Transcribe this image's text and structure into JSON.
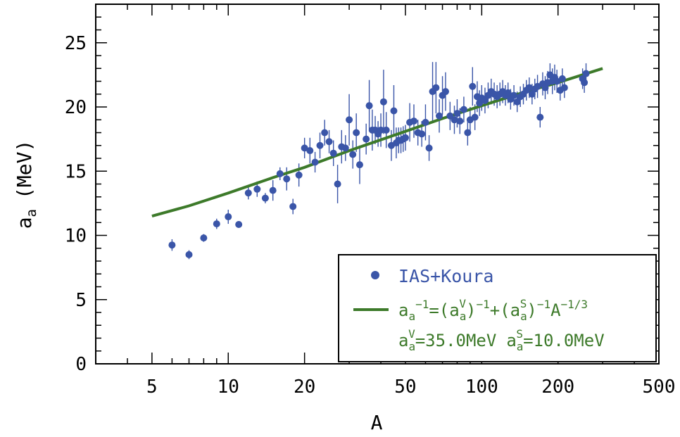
{
  "chart_data": {
    "type": "scatter",
    "xlabel": "A",
    "ylabel_main": "a",
    "ylabel_sub": "a",
    "ylabel_unit": "(MeV)",
    "x_scale": "log",
    "xlim": [
      3,
      500
    ],
    "ylim": [
      0,
      28
    ],
    "xticks": [
      5,
      10,
      20,
      50,
      100,
      200,
      500
    ],
    "xtick_labels": [
      "5",
      "10",
      "20",
      "50",
      "100",
      "200",
      "500"
    ],
    "yticks": [
      0,
      5,
      10,
      15,
      20,
      25
    ],
    "ytick_labels": [
      "0",
      "5",
      "10",
      "15",
      "20",
      "25"
    ],
    "colors": {
      "points": "#3a55a8",
      "fit": "#3d7a2a",
      "frame": "#000000"
    },
    "legend": {
      "placement": "bottom-right",
      "points_label": "IAS+Koura",
      "fit_line1": "a_a^{-1}=(a_a^V)^{-1}+(a_a^S)^{-1}A^{-1/3}",
      "fit_line2": "a_a^V=35.0MeV  a_a^S=10.0MeV",
      "fit_parts": {
        "a": "a",
        "sub": "a",
        "exp_neg1": "−1",
        "eq_open": "=(",
        "V": "V",
        "close_exp": ")",
        "plus_open": "+(",
        "S": "S",
        "A": "A",
        "exp_third": "−1/3",
        "v_val": "=35.0MeV",
        "s_val": "=10.0MeV"
      }
    },
    "series": [
      {
        "name": "IAS+Koura",
        "kind": "points_with_errors",
        "points": [
          [
            6,
            9.25,
            0.45
          ],
          [
            7,
            8.5,
            0.35
          ],
          [
            8,
            9.8,
            0.3
          ],
          [
            9,
            10.9,
            0.4
          ],
          [
            10,
            11.45,
            0.55
          ],
          [
            11,
            10.85,
            0.2
          ],
          [
            12,
            13.3,
            0.5
          ],
          [
            13,
            13.6,
            0.6
          ],
          [
            14,
            12.9,
            0.4
          ],
          [
            15,
            13.5,
            0.8
          ],
          [
            16,
            14.8,
            0.5
          ],
          [
            17,
            14.4,
            0.9
          ],
          [
            18,
            12.25,
            0.6
          ],
          [
            19,
            14.7,
            0.9
          ],
          [
            20,
            16.8,
            0.8
          ],
          [
            21,
            16.6,
            1.0
          ],
          [
            22,
            15.7,
            0.8
          ],
          [
            23,
            17.0,
            1.0
          ],
          [
            24,
            18.0,
            1.0
          ],
          [
            25,
            17.3,
            0.9
          ],
          [
            26,
            16.4,
            1.0
          ],
          [
            27,
            14.0,
            1.5
          ],
          [
            28,
            16.9,
            1.3
          ],
          [
            29,
            16.8,
            1.0
          ],
          [
            30,
            19.0,
            2.0
          ],
          [
            31,
            16.3,
            1.1
          ],
          [
            32,
            18.0,
            1.5
          ],
          [
            33,
            15.5,
            1.5
          ],
          [
            35,
            17.5,
            1.2
          ],
          [
            36,
            20.1,
            2.0
          ],
          [
            37,
            18.2,
            1.6
          ],
          [
            38,
            18.2,
            1.1
          ],
          [
            39,
            17.9,
            1.0
          ],
          [
            40,
            18.2,
            1.3
          ],
          [
            41,
            20.4,
            2.5
          ],
          [
            42,
            18.2,
            1.4
          ],
          [
            44,
            17.0,
            1.2
          ],
          [
            45,
            19.7,
            2.0
          ],
          [
            46,
            17.2,
            1.2
          ],
          [
            47,
            17.4,
            1.0
          ],
          [
            48,
            17.4,
            1.0
          ],
          [
            49,
            17.5,
            1.0
          ],
          [
            50,
            17.6,
            1.0
          ],
          [
            52,
            18.8,
            1.5
          ],
          [
            54,
            18.9,
            1.3
          ],
          [
            56,
            18.0,
            1.0
          ],
          [
            58,
            17.9,
            1.0
          ],
          [
            60,
            18.8,
            1.4
          ],
          [
            62,
            16.8,
            1.0
          ],
          [
            64,
            21.2,
            2.3
          ],
          [
            66,
            21.5,
            2.0
          ],
          [
            68,
            19.3,
            1.3
          ],
          [
            70,
            20.9,
            1.5
          ],
          [
            72,
            21.2,
            1.5
          ],
          [
            75,
            19.3,
            1.1
          ],
          [
            78,
            19.0,
            1.1
          ],
          [
            80,
            19.5,
            1.1
          ],
          [
            82,
            18.9,
            1.0
          ],
          [
            85,
            19.8,
            1.0
          ],
          [
            88,
            18.0,
            1.0
          ],
          [
            90,
            19.0,
            1.0
          ],
          [
            92,
            21.6,
            1.5
          ],
          [
            94,
            19.2,
            1.0
          ],
          [
            96,
            20.8,
            1.2
          ],
          [
            98,
            20.3,
            1.0
          ],
          [
            100,
            20.7,
            1.0
          ],
          [
            103,
            20.5,
            1.0
          ],
          [
            106,
            20.9,
            1.0
          ],
          [
            109,
            21.2,
            1.0
          ],
          [
            112,
            21.0,
            0.9
          ],
          [
            115,
            20.8,
            0.9
          ],
          [
            118,
            21.0,
            0.9
          ],
          [
            121,
            21.2,
            0.9
          ],
          [
            124,
            20.9,
            0.8
          ],
          [
            127,
            21.1,
            0.8
          ],
          [
            130,
            20.6,
            0.8
          ],
          [
            134,
            20.9,
            0.8
          ],
          [
            138,
            20.4,
            0.8
          ],
          [
            142,
            20.8,
            0.8
          ],
          [
            146,
            21.0,
            0.8
          ],
          [
            150,
            21.3,
            0.8
          ],
          [
            154,
            21.5,
            0.8
          ],
          [
            158,
            21.0,
            0.8
          ],
          [
            162,
            21.4,
            0.8
          ],
          [
            166,
            21.6,
            0.9
          ],
          [
            170,
            19.2,
            0.8
          ],
          [
            174,
            21.8,
            0.9
          ],
          [
            178,
            21.5,
            0.9
          ],
          [
            182,
            21.9,
            0.9
          ],
          [
            186,
            22.5,
            0.9
          ],
          [
            190,
            22.0,
            1.0
          ],
          [
            194,
            22.3,
            1.0
          ],
          [
            198,
            22.0,
            0.9
          ],
          [
            204,
            21.3,
            0.8
          ],
          [
            208,
            22.2,
            0.8
          ],
          [
            212,
            21.5,
            0.8
          ],
          [
            250,
            22.2,
            0.8
          ],
          [
            254,
            21.9,
            0.8
          ],
          [
            258,
            22.6,
            0.8
          ]
        ]
      },
      {
        "name": "a_a^{-1}=(a_a^V)^{-1}+(a_a^S)^{-1}A^{-1/3}",
        "kind": "fit_line",
        "x": [
          5,
          7,
          10,
          15,
          20,
          30,
          50,
          70,
          100,
          150,
          200,
          300
        ],
        "y": [
          11.5,
          12.3,
          13.3,
          14.5,
          15.3,
          16.6,
          18.1,
          19.1,
          20.1,
          21.2,
          21.9,
          23.0
        ]
      }
    ]
  }
}
